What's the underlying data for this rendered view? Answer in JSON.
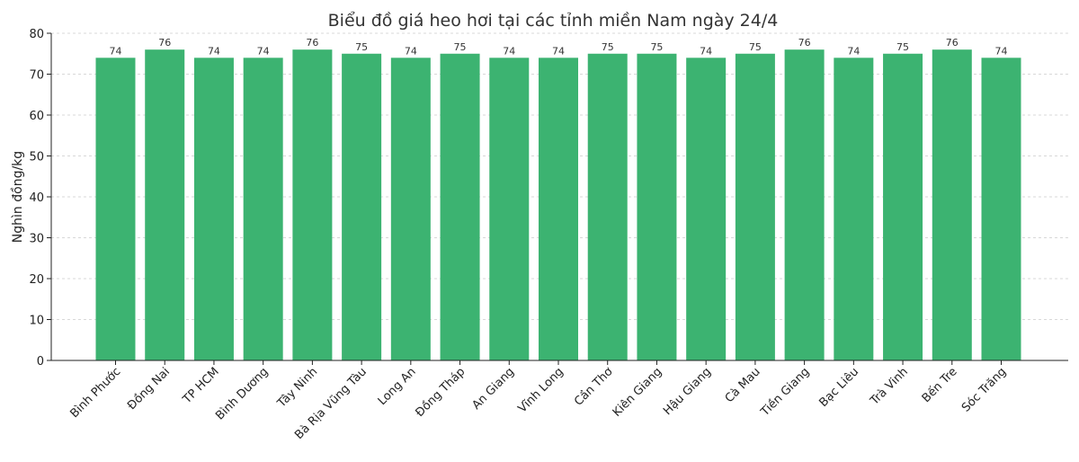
{
  "chart_data": {
    "type": "bar",
    "title": "Biểu đồ giá heo hơi tại các tỉnh miền Nam ngày 24/4",
    "xlabel": "",
    "ylabel": "Nghìn đồng/kg",
    "ylim": [
      0,
      80
    ],
    "yticks": [
      0,
      10,
      20,
      30,
      40,
      50,
      60,
      70,
      80
    ],
    "grid": true,
    "bar_color": "#3cb371",
    "categories": [
      "Bình Phước",
      "Đồng Nai",
      "TP HCM",
      "Bình Dương",
      "Tây Ninh",
      "Bà Rịa  Vũng Tàu",
      "Long An",
      "Đồng Tháp",
      "An Giang",
      "Vĩnh Long",
      "Cần Thơ",
      "Kiên Giang",
      "Hậu Giang",
      "Cà Mau",
      "Tiền Giang",
      "Bạc Liêu",
      "Trà Vinh",
      "Bến Tre",
      "Sóc Trăng"
    ],
    "values": [
      74,
      76,
      74,
      74,
      76,
      75,
      74,
      75,
      74,
      74,
      75,
      75,
      74,
      75,
      76,
      74,
      75,
      76,
      74
    ]
  }
}
